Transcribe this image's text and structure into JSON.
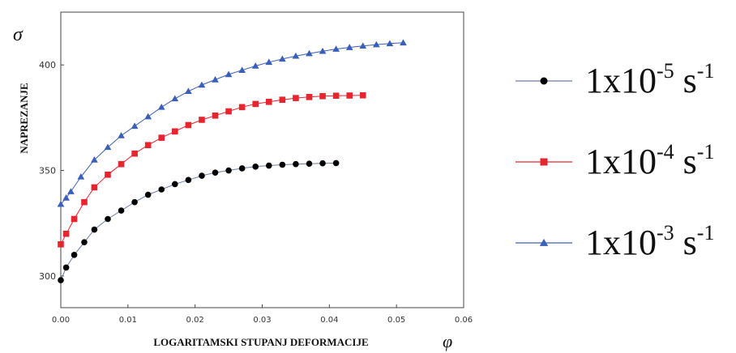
{
  "chart_data": {
    "type": "scatter",
    "xlabel": "LOGARITAMSKI STUPANJ DEFORMACIJE",
    "x_symbol": "φ",
    "ylabel": "NAPREZANJE",
    "y_symbol": "σ",
    "xlim": [
      0,
      0.06
    ],
    "ylim": [
      285,
      425
    ],
    "x_ticks": [
      "0.00",
      "0.01",
      "0.02",
      "0.03",
      "0.04",
      "0.05",
      "0.06"
    ],
    "y_ticks": [
      "300",
      "350",
      "400"
    ],
    "legend_position": "right",
    "series": [
      {
        "name": "1x10-5 s-1",
        "label_base": "1x10",
        "label_exp": "-5",
        "label_unit": " s",
        "label_unit_exp": "-1",
        "marker": "circle",
        "color": "#000000",
        "line_color": "#6b7fa8",
        "x": [
          0.0,
          0.0008,
          0.002,
          0.0035,
          0.005,
          0.007,
          0.009,
          0.011,
          0.013,
          0.015,
          0.017,
          0.019,
          0.021,
          0.023,
          0.025,
          0.027,
          0.029,
          0.031,
          0.033,
          0.035,
          0.037,
          0.039,
          0.041
        ],
        "y": [
          298,
          304,
          310,
          316,
          322,
          327,
          331,
          335,
          338.5,
          341,
          343.5,
          345.5,
          347.5,
          349,
          350,
          351,
          351.8,
          352.3,
          352.7,
          353,
          353.2,
          353.4,
          353.5
        ]
      },
      {
        "name": "1x10-4 s-1",
        "label_base": "1x10",
        "label_exp": "-4",
        "label_unit": " s",
        "label_unit_exp": "-1",
        "marker": "square",
        "color": "#e8242f",
        "line_color": "#e8242f",
        "x": [
          0.0,
          0.0008,
          0.002,
          0.0035,
          0.005,
          0.007,
          0.009,
          0.011,
          0.013,
          0.015,
          0.017,
          0.019,
          0.021,
          0.023,
          0.025,
          0.027,
          0.029,
          0.031,
          0.033,
          0.035,
          0.037,
          0.039,
          0.041,
          0.043,
          0.045
        ],
        "y": [
          315,
          320,
          327,
          335,
          342,
          348,
          353,
          358,
          362,
          365.5,
          368.5,
          371.5,
          374,
          376,
          378,
          380,
          381.5,
          382.5,
          383.5,
          384.3,
          384.8,
          385.2,
          385.4,
          385.5,
          385.6
        ]
      },
      {
        "name": "1x10-3 s-1",
        "label_base": "1x10",
        "label_exp": "-3",
        "label_unit": " s",
        "label_unit_exp": "-1",
        "marker": "triangle",
        "color": "#3a5fb8",
        "line_color": "#3a5fb8",
        "x": [
          0.0,
          0.0008,
          0.0015,
          0.003,
          0.005,
          0.007,
          0.009,
          0.011,
          0.013,
          0.015,
          0.017,
          0.019,
          0.021,
          0.023,
          0.025,
          0.027,
          0.029,
          0.031,
          0.033,
          0.035,
          0.037,
          0.039,
          0.041,
          0.043,
          0.045,
          0.047,
          0.049,
          0.051
        ],
        "y": [
          334,
          337,
          340,
          347,
          355,
          361,
          366.5,
          371,
          375.5,
          380,
          384,
          387.5,
          390.5,
          393,
          395.5,
          397.5,
          399.5,
          401.3,
          402.8,
          404.2,
          405.4,
          406.5,
          407.5,
          408.3,
          409,
          409.6,
          410.1,
          410.5
        ]
      }
    ]
  }
}
